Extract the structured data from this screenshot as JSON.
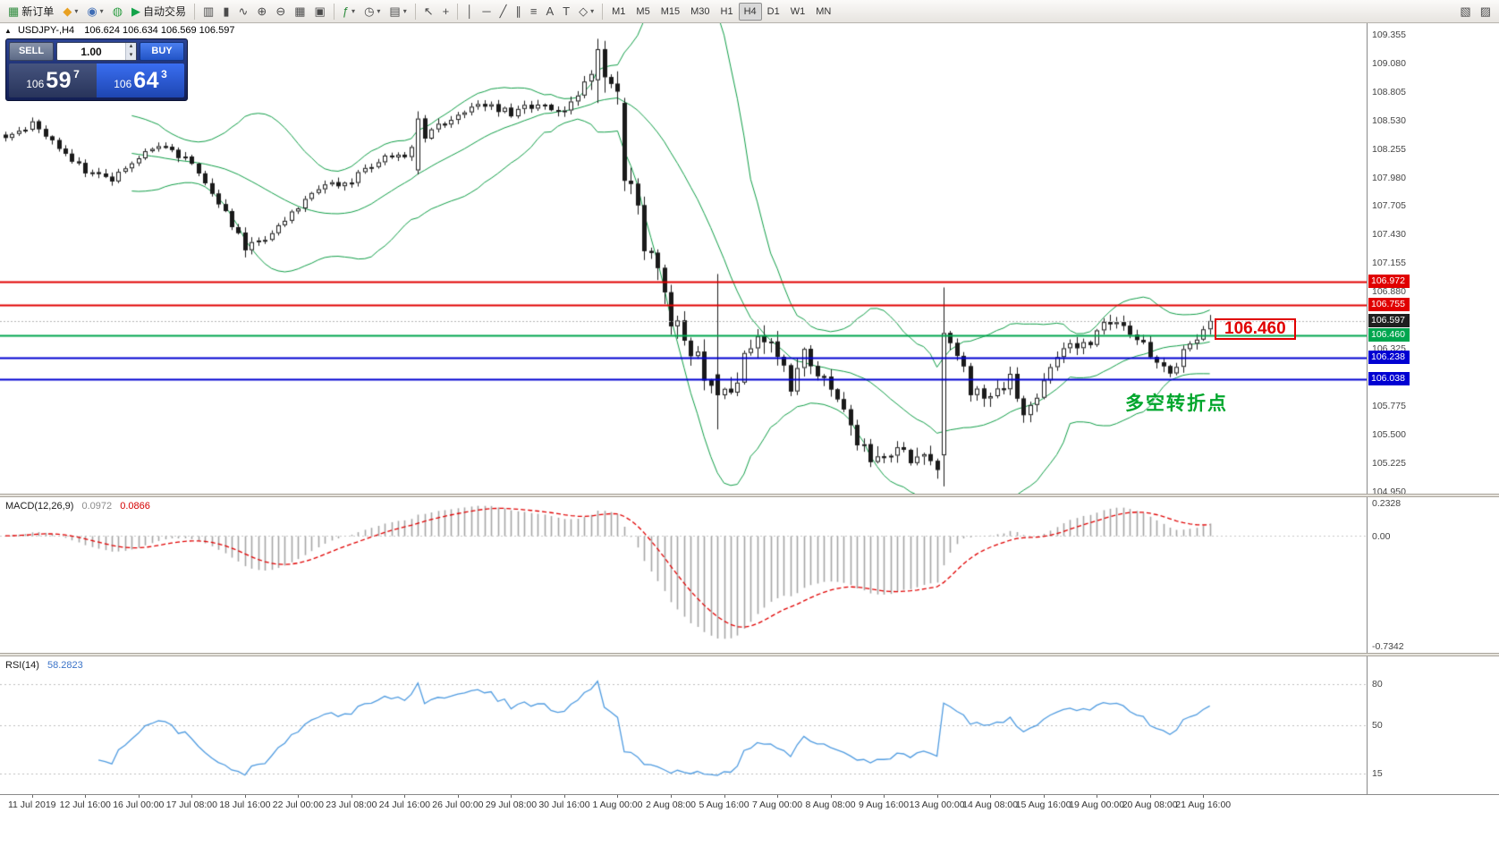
{
  "icons": {
    "caret_down": "▾",
    "spin_up": "▴",
    "spin_down": "▾",
    "collapse": "▲"
  },
  "toolbar": {
    "groups": [
      {
        "items": [
          {
            "name": "new-order-button",
            "glyph": "▦",
            "glyph_color": "#2e8b3d",
            "label": "新订单"
          },
          {
            "name": "new-chart-button",
            "glyph": "◆",
            "glyph_color": "#e8a020",
            "caret": true
          },
          {
            "name": "profiles-button",
            "glyph": "◉",
            "glyph_color": "#3f6db5",
            "caret": true
          },
          {
            "name": "strategy-tester-button",
            "glyph": "◍",
            "glyph_color": "#2f9e44"
          },
          {
            "name": "auto-trading-button",
            "glyph": "▶",
            "glyph_color": "#13a34a",
            "label": "自动交易"
          }
        ]
      },
      {
        "items": [
          {
            "name": "bar-chart-button",
            "glyph": "▥"
          },
          {
            "name": "candlestick-chart-button",
            "glyph": "▮"
          },
          {
            "name": "line-chart-button",
            "glyph": "∿"
          },
          {
            "name": "zoom-in-button",
            "glyph": "⊕"
          },
          {
            "name": "zoom-out-button",
            "glyph": "⊖"
          },
          {
            "name": "tile-windows-button",
            "glyph": "▦"
          },
          {
            "name": "arrange-windows-button",
            "glyph": "▣"
          }
        ]
      },
      {
        "items": [
          {
            "name": "indicators-button",
            "glyph": "ƒ",
            "glyph_color": "#2e8b3d",
            "caret": true
          },
          {
            "name": "periods-button",
            "glyph": "◷",
            "caret": true
          },
          {
            "name": "templates-button",
            "glyph": "▤",
            "caret": true
          }
        ]
      },
      {
        "items": [
          {
            "name": "cursor-button",
            "glyph": "↖"
          },
          {
            "name": "crosshair-button",
            "glyph": "+"
          }
        ]
      },
      {
        "items": [
          {
            "name": "vertical-line-button",
            "glyph": "│"
          },
          {
            "name": "horizontal-line-button",
            "glyph": "─"
          },
          {
            "name": "trendline-button",
            "glyph": "╱"
          },
          {
            "name": "channel-button",
            "glyph": "∥"
          },
          {
            "name": "fibonacci-button",
            "glyph": "≡"
          },
          {
            "name": "text-button",
            "glyph": "A"
          },
          {
            "name": "label-button",
            "glyph": "T"
          },
          {
            "name": "shapes-button",
            "glyph": "◇",
            "caret": true
          }
        ]
      }
    ],
    "timeframes": [
      "M1",
      "M5",
      "M15",
      "M30",
      "H1",
      "H4",
      "D1",
      "W1",
      "MN"
    ],
    "active_timeframe": "H4",
    "right_icons": [
      {
        "name": "chart-shift-button",
        "glyph": "▧"
      },
      {
        "name": "auto-scroll-button",
        "glyph": "▨"
      }
    ]
  },
  "chart": {
    "symbol_info": "USDJPY-,H4",
    "ohlc": "106.624 106.634 106.569 106.597"
  },
  "trade_panel": {
    "sell_label": "SELL",
    "buy_label": "BUY",
    "volume": "1.00",
    "sell_price_prefix": "106",
    "sell_price_main": "59",
    "sell_price_sup": "7",
    "buy_price_prefix": "106",
    "buy_price_main": "64",
    "buy_price_sup": "3"
  },
  "levels": [
    {
      "price": "106.972",
      "value": 106.972,
      "color": "#e00000"
    },
    {
      "price": "106.755",
      "value": 106.755,
      "color": "#e00000"
    },
    {
      "price": "106.460",
      "value": 106.46,
      "color": "#00a64f"
    },
    {
      "price": "106.238",
      "value": 106.238,
      "color": "#0000d2"
    },
    {
      "price": "106.038",
      "value": 106.038,
      "color": "#0000d2"
    }
  ],
  "current_price_tag": {
    "price": "106.597",
    "value": 106.597,
    "color": "#1f1f1f"
  },
  "annotations": {
    "price_box": "106.460",
    "price_box_value": 106.46,
    "turning_point": "多空转折点",
    "turning_point_price": 105.7
  },
  "macd": {
    "label": "MACD(12,26,9)",
    "value_main": "0.0972",
    "value_signal": "0.0866",
    "scale_top": "0.2328",
    "scale_zero": "0.00",
    "scale_bottom": "-0.7342"
  },
  "rsi": {
    "label": "RSI(14)",
    "value": "58.2823",
    "levels": [
      "80",
      "50",
      "15"
    ]
  },
  "time_axis": [
    "11 Jul 2019",
    "12 Jul 16:00",
    "16 Jul 00:00",
    "17 Jul 08:00",
    "18 Jul 16:00",
    "22 Jul 00:00",
    "23 Jul 08:00",
    "24 Jul 16:00",
    "26 Jul 00:00",
    "29 Jul 08:00",
    "30 Jul 16:00",
    "1 Aug 00:00",
    "2 Aug 08:00",
    "5 Aug 16:00",
    "7 Aug 00:00",
    "8 Aug 08:00",
    "9 Aug 16:00",
    "13 Aug 00:00",
    "14 Aug 08:00",
    "15 Aug 16:00",
    "19 Aug 00:00",
    "20 Aug 08:00",
    "21 Aug 16:00"
  ],
  "chart_data": {
    "type": "candlestick",
    "symbol": "USDJPY-",
    "timeframe": "H4",
    "ohlc_current": {
      "open": 106.624,
      "high": 106.634,
      "low": 106.569,
      "close": 106.597
    },
    "candle_count": 182,
    "current_price": 106.597,
    "y_range": [
      104.93,
      109.47
    ],
    "price_ticks": [
      109.355,
      109.08,
      108.805,
      108.53,
      108.255,
      107.98,
      107.705,
      107.43,
      107.155,
      106.88,
      106.605,
      106.325,
      106.05,
      105.775,
      105.5,
      105.225,
      104.95
    ],
    "close_anchors": [
      [
        0,
        108.35
      ],
      [
        4,
        108.5
      ],
      [
        8,
        108.25
      ],
      [
        12,
        108.05
      ],
      [
        16,
        107.95
      ],
      [
        20,
        108.2
      ],
      [
        24,
        108.3
      ],
      [
        28,
        108.1
      ],
      [
        32,
        107.75
      ],
      [
        36,
        107.3
      ],
      [
        40,
        107.45
      ],
      [
        44,
        107.7
      ],
      [
        48,
        107.9
      ],
      [
        52,
        107.95
      ],
      [
        56,
        108.15
      ],
      [
        60,
        108.2
      ],
      [
        64,
        108.45
      ],
      [
        68,
        108.6
      ],
      [
        72,
        108.7
      ],
      [
        76,
        108.6
      ],
      [
        80,
        108.7
      ],
      [
        84,
        108.6
      ],
      [
        87,
        108.85
      ],
      [
        89,
        109.2
      ],
      [
        91,
        108.95
      ],
      [
        92,
        108.75
      ],
      [
        94,
        107.9
      ],
      [
        96,
        107.35
      ],
      [
        98,
        107.05
      ],
      [
        100,
        106.55
      ],
      [
        102,
        106.45
      ],
      [
        104,
        106.2
      ],
      [
        106,
        105.95
      ],
      [
        108,
        105.9
      ],
      [
        110,
        106.1
      ],
      [
        112,
        106.35
      ],
      [
        114,
        106.4
      ],
      [
        116,
        106.25
      ],
      [
        118,
        106.0
      ],
      [
        120,
        106.35
      ],
      [
        122,
        106.1
      ],
      [
        124,
        105.95
      ],
      [
        126,
        105.7
      ],
      [
        128,
        105.45
      ],
      [
        130,
        105.3
      ],
      [
        132,
        105.25
      ],
      [
        134,
        105.4
      ],
      [
        136,
        105.15
      ],
      [
        138,
        105.3
      ],
      [
        140,
        105.2
      ],
      [
        141,
        106.48
      ],
      [
        143,
        106.25
      ],
      [
        145,
        105.95
      ],
      [
        147,
        105.8
      ],
      [
        149,
        105.95
      ],
      [
        151,
        106.05
      ],
      [
        153,
        105.75
      ],
      [
        155,
        105.9
      ],
      [
        157,
        106.1
      ],
      [
        159,
        106.3
      ],
      [
        161,
        106.35
      ],
      [
        163,
        106.4
      ],
      [
        165,
        106.55
      ],
      [
        167,
        106.6
      ],
      [
        169,
        106.45
      ],
      [
        171,
        106.35
      ],
      [
        173,
        106.2
      ],
      [
        175,
        106.1
      ],
      [
        177,
        106.3
      ],
      [
        179,
        106.4
      ],
      [
        181,
        106.6
      ]
    ],
    "vol_anchors": [
      [
        0,
        0.07
      ],
      [
        60,
        0.07
      ],
      [
        85,
        0.08
      ],
      [
        92,
        0.22
      ],
      [
        110,
        0.2
      ],
      [
        130,
        0.16
      ],
      [
        140,
        0.18
      ],
      [
        145,
        0.14
      ],
      [
        181,
        0.09
      ]
    ],
    "special_candles": [
      {
        "i": 36,
        "o": 107.45,
        "h": 107.5,
        "l": 107.21,
        "c": 107.28
      },
      {
        "i": 62,
        "o": 108.05,
        "h": 108.62,
        "l": 108.01,
        "c": 108.55
      },
      {
        "i": 89,
        "o": 108.92,
        "h": 109.32,
        "l": 108.7,
        "c": 109.22
      },
      {
        "i": 90,
        "o": 109.22,
        "h": 109.3,
        "l": 108.8,
        "c": 108.95
      },
      {
        "i": 93,
        "o": 108.7,
        "h": 108.75,
        "l": 107.85,
        "c": 107.95
      },
      {
        "i": 107,
        "o": 106.08,
        "h": 107.05,
        "l": 105.55,
        "c": 105.88
      },
      {
        "i": 141,
        "o": 105.3,
        "h": 106.92,
        "l": 105.0,
        "c": 106.48
      }
    ],
    "first_label_candle_index": 4,
    "time_labels_candle_step": 8,
    "indicators": {
      "bollinger": {
        "period": 20,
        "deviation": 2,
        "color": "#0f9d46"
      },
      "macd": {
        "fast": 12,
        "slow": 26,
        "signal": 9,
        "current_main": 0.0972,
        "current_signal": 0.0866,
        "scale_max": 0.2328,
        "scale_min": -0.7342,
        "histogram_color": "#a6a6a6",
        "signal_color": "#e00000"
      },
      "rsi": {
        "period": 14,
        "current": 58.2823,
        "levels": [
          80,
          50,
          15
        ],
        "range": [
          0,
          100
        ],
        "color": "#4f9be0"
      }
    }
  }
}
